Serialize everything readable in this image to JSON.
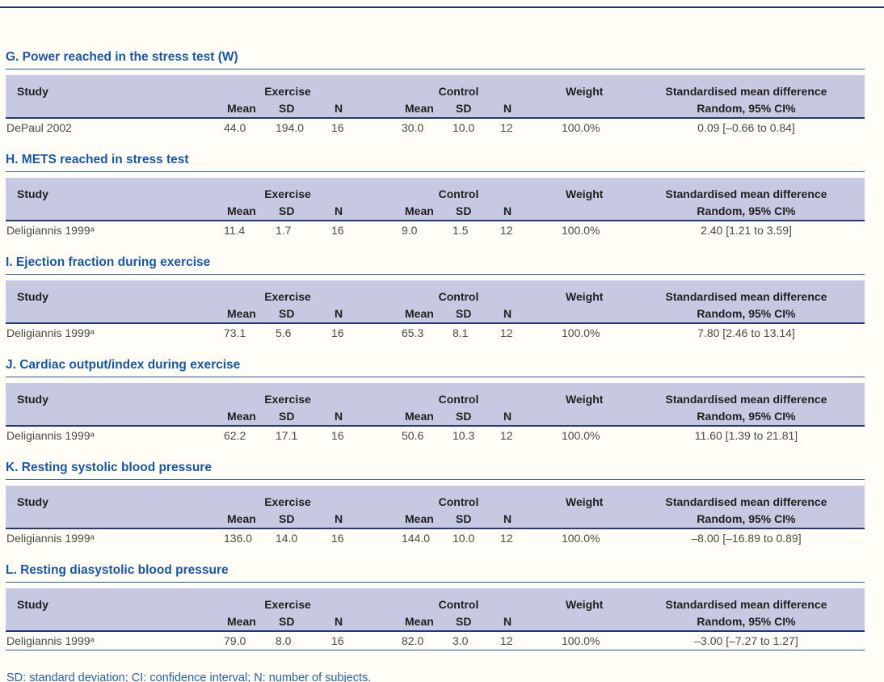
{
  "headers": {
    "study": "Study",
    "exercise_group": "Exercise",
    "control_group": "Control",
    "weight": "Weight",
    "smd_line1": "Standardised mean difference",
    "smd_line2": "Random, 95% CI%",
    "mean": "Mean",
    "sd": "SD",
    "n": "N"
  },
  "sections": [
    {
      "title": "G. Power reached in the stress test (W)",
      "row": {
        "study": "DePaul 2002",
        "ex_mean": "44.0",
        "ex_sd": "194.0",
        "ex_n": "16",
        "c_mean": "30.0",
        "c_sd": "10.0",
        "c_n": "12",
        "weight": "100.0%",
        "smd": "0.09 [–0.66 to 0.84]"
      }
    },
    {
      "title": "H. METS reached in stress test",
      "row": {
        "study": "Deligiannis 1999ᵃ",
        "ex_mean": "11.4",
        "ex_sd": "1.7",
        "ex_n": "16",
        "c_mean": "9.0",
        "c_sd": "1.5",
        "c_n": "12",
        "weight": "100.0%",
        "smd": "2.40 [1.21 to 3.59]"
      }
    },
    {
      "title": "I. Ejection fraction during exercise",
      "row": {
        "study": "Deligiannis 1999ᵃ",
        "ex_mean": "73.1",
        "ex_sd": "5.6",
        "ex_n": "16",
        "c_mean": "65.3",
        "c_sd": "8.1",
        "c_n": "12",
        "weight": "100.0%",
        "smd": "7.80 [2.46 to 13.14]"
      }
    },
    {
      "title": "J. Cardiac output/index during exercise",
      "row": {
        "study": "Deligiannis 1999ᵃ",
        "ex_mean": "62.2",
        "ex_sd": "17.1",
        "ex_n": "16",
        "c_mean": "50.6",
        "c_sd": "10.3",
        "c_n": "12",
        "weight": "100.0%",
        "smd": "11.60 [1.39 to 21.81]"
      }
    },
    {
      "title": "K. Resting systolic blood pressure",
      "row": {
        "study": "Deligiannis 1999ᵃ",
        "ex_mean": "136.0",
        "ex_sd": "14.0",
        "ex_n": "16",
        "c_mean": "144.0",
        "c_sd": "10.0",
        "c_n": "12",
        "weight": "100.0%",
        "smd": "–8.00 [–16.89 to 0.89]"
      }
    },
    {
      "title": "L. Resting diasystolic blood pressure",
      "row": {
        "study": "Deligiannis 1999ᵃ",
        "ex_mean": "79.0",
        "ex_sd": "8.0",
        "ex_n": "16",
        "c_mean": "82.0",
        "c_sd": "3.0",
        "c_n": "12",
        "weight": "100.0%",
        "smd": "–3.00 [–7.27 to 1.27]"
      }
    }
  ],
  "footnote": "SD: standard deviation; CI: confidence interval; N: number of subjects.",
  "colors": {
    "header_band": "#c6c9e1",
    "heading_blue": "#1a579f",
    "rule_blue": "#2a6099",
    "dark_rule_navy": "#233a70",
    "top_rule_navy": "#17375e",
    "body_text": "#4a4a4a"
  }
}
